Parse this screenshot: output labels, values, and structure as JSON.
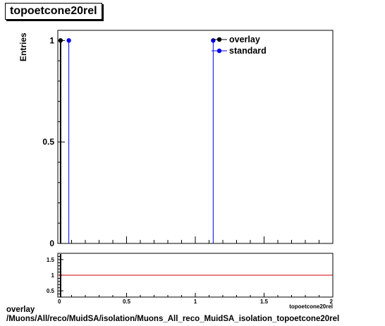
{
  "title": "topoetcone20rel",
  "caption": {
    "line1": "overlay",
    "line2": "/Muons/All/reco/MuidSA/isolation/Muons_All_reco_MuidSA_isolation_topoetcone20rel"
  },
  "colors": {
    "overlay": "#000000",
    "standard": "#0000ee",
    "ratio_line": "#cc0000"
  },
  "chart_data": [
    {
      "type": "scatter",
      "title": "topoetcone20rel",
      "xlabel": "topoetcone20rel",
      "ylabel": "Entries",
      "xlim": [
        0,
        2
      ],
      "ylim": [
        0,
        1.05
      ],
      "yticks": [
        0,
        0.5,
        1
      ],
      "ytick_labels": [
        "0",
        "0.5",
        "1"
      ],
      "legend": {
        "position": "top-right",
        "entries": [
          "overlay",
          "standard"
        ]
      },
      "series": [
        {
          "name": "overlay",
          "x": [
            0.02
          ],
          "y": [
            1
          ],
          "x_bin_edges": [
            [
              0.015,
              0.03
            ]
          ]
        },
        {
          "name": "standard",
          "x": [
            0.08,
            1.13
          ],
          "y": [
            1,
            1
          ],
          "x_bin_edges": [
            [
              0.075,
              0.09
            ],
            [
              1.125,
              1.135
            ]
          ]
        }
      ]
    },
    {
      "type": "line",
      "xlim": [
        0,
        2
      ],
      "ylim": [
        0.3,
        1.7
      ],
      "xticks": [
        0,
        0.5,
        1,
        1.5,
        2
      ],
      "xtick_labels": [
        "0",
        "0.5",
        "1",
        "1.5",
        "2"
      ],
      "yticks": [
        0.5,
        1,
        1.5
      ],
      "ytick_labels": [
        "0.5",
        "1",
        "1.5"
      ],
      "reference_line": 1,
      "series": [
        {
          "x": [
            0.02
          ],
          "y": [
            1
          ]
        }
      ]
    }
  ]
}
